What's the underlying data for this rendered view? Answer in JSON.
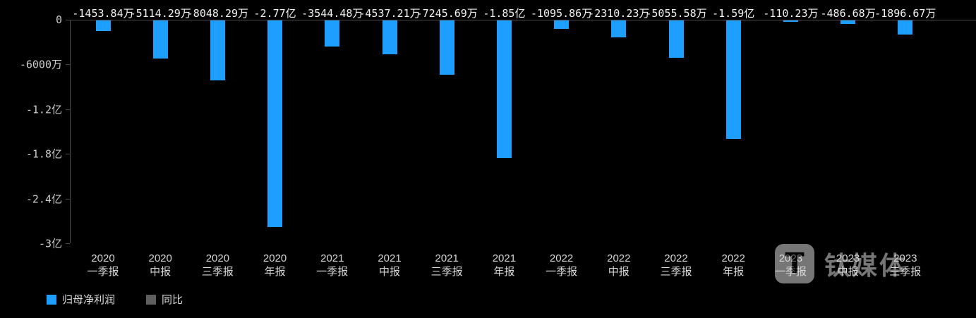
{
  "chart_data": {
    "type": "bar",
    "title": "",
    "xlabel": "",
    "ylabel": "",
    "categories": [
      [
        "2020",
        "一季报"
      ],
      [
        "2020",
        "中报"
      ],
      [
        "2020",
        "三季报"
      ],
      [
        "2020",
        "年报"
      ],
      [
        "2021",
        "一季报"
      ],
      [
        "2021",
        "中报"
      ],
      [
        "2021",
        "三季报"
      ],
      [
        "2021",
        "年报"
      ],
      [
        "2022",
        "一季报"
      ],
      [
        "2022",
        "中报"
      ],
      [
        "2022",
        "三季报"
      ],
      [
        "2022",
        "年报"
      ],
      [
        "2023",
        "一季报"
      ],
      [
        "2023",
        "中报"
      ],
      [
        "2023",
        "三季报"
      ]
    ],
    "series": [
      {
        "name": "归母净利润",
        "color": "#1E9FFF",
        "values_wan": [
          -1453.84,
          -5114.29,
          -8048.29,
          -27700,
          -3544.48,
          -4537.21,
          -7245.69,
          -18500,
          -1095.86,
          -2310.23,
          -5055.58,
          -15900,
          -110.23,
          -486.68,
          -1896.67
        ],
        "labels": [
          "-1453.84万",
          "-5114.29万",
          "-8048.29万",
          "-2.77亿",
          "-3544.48万",
          "-4537.21万",
          "-7245.69万",
          "-1.85亿",
          "-1095.86万",
          "-2310.23万",
          "-5055.58万",
          "-1.59亿",
          "-110.23万",
          "-486.68万",
          "-1896.67万"
        ]
      }
    ],
    "y_axis": {
      "ticks": [
        "0",
        "-6000万",
        "-1.2亿",
        "-1.8亿",
        "-2.4亿",
        "-3亿"
      ],
      "max_wan": 0,
      "min_wan": -30000
    },
    "grid": false,
    "legend_position": "bottom-left",
    "legend": [
      {
        "label": "归母净利润",
        "color": "#1E9FFF"
      },
      {
        "label": "同比",
        "color": "#5f5f5f"
      }
    ]
  },
  "watermark": {
    "logo_text": "T",
    "brand": "钛媒体"
  },
  "colors": {
    "background": "#000000",
    "bar": "#1E9FFF",
    "axis": "#4a4a4a",
    "tick_text": "#cccccc",
    "value_text": "#f2f2f2",
    "legend_muted": "#5f5f5f"
  }
}
